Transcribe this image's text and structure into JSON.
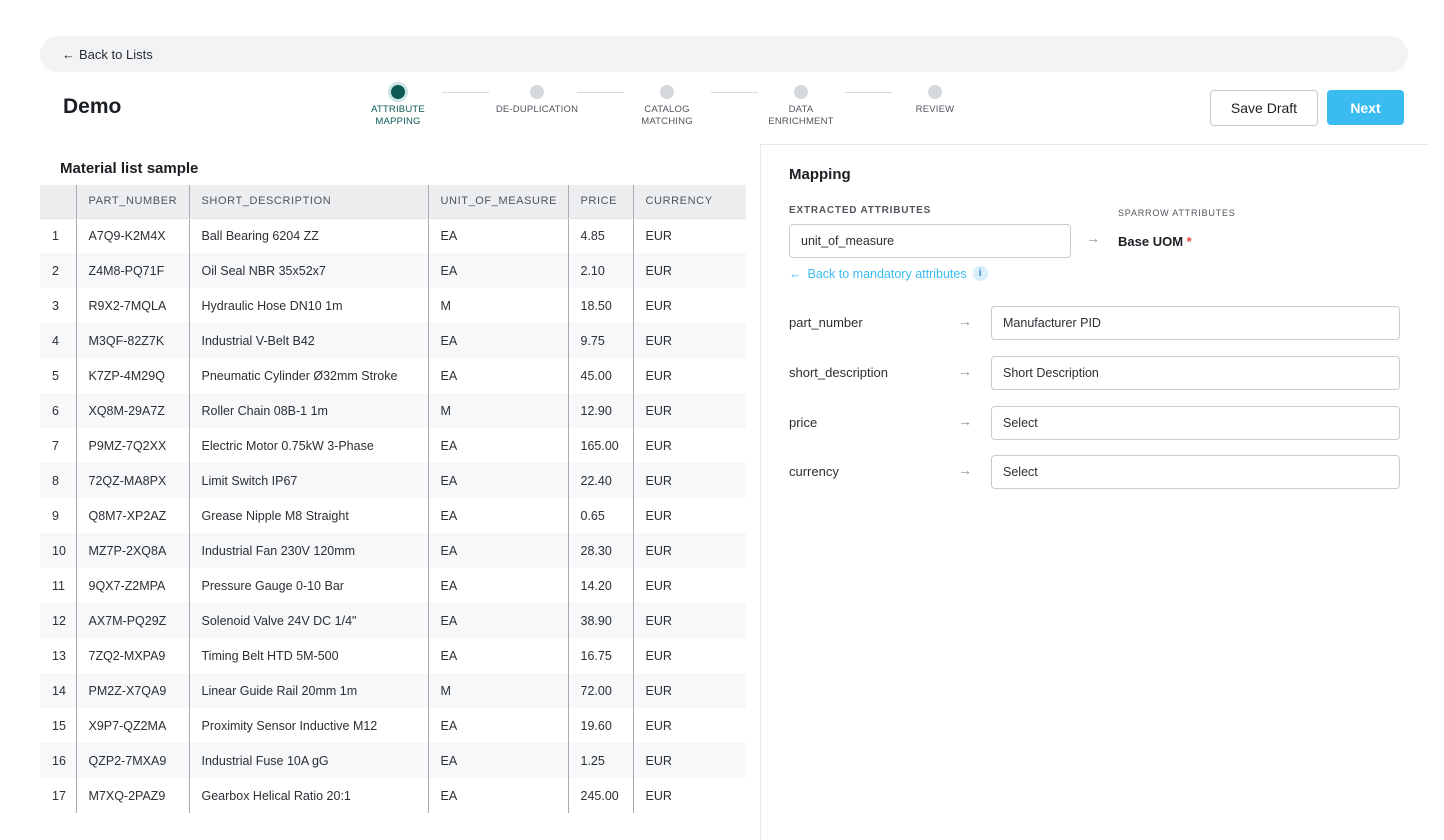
{
  "nav": {
    "back_label": "Back to Lists",
    "back_icon": "arrow-left-icon"
  },
  "page": {
    "title": "Demo"
  },
  "stepper": {
    "steps": [
      {
        "line1": "ATTRIBUTE",
        "line2": "MAPPING",
        "active": true
      },
      {
        "line1": "DE-DUPLICATION",
        "line2": "",
        "active": false
      },
      {
        "line1": "CATALOG",
        "line2": "MATCHING",
        "active": false
      },
      {
        "line1": "DATA",
        "line2": "ENRICHMENT",
        "active": false
      },
      {
        "line1": "REVIEW",
        "line2": "",
        "active": false
      }
    ]
  },
  "actions": {
    "save_draft": "Save Draft",
    "next": "Next"
  },
  "table": {
    "title": "Material list sample",
    "columns": [
      "",
      "PART_NUMBER",
      "SHORT_DESCRIPTION",
      "UNIT_OF_MEASURE",
      "PRICE",
      "CURRENCY"
    ],
    "rows": [
      [
        "1",
        "A7Q9-K2M4X",
        "Ball Bearing 6204 ZZ",
        "EA",
        "4.85",
        "EUR"
      ],
      [
        "2",
        "Z4M8-PQ71F",
        "Oil Seal NBR 35x52x7",
        "EA",
        "2.10",
        "EUR"
      ],
      [
        "3",
        "R9X2-7MQLA",
        "Hydraulic Hose DN10 1m",
        "M",
        "18.50",
        "EUR"
      ],
      [
        "4",
        "M3QF-82Z7K",
        "Industrial V-Belt B42",
        "EA",
        "9.75",
        "EUR"
      ],
      [
        "5",
        "K7ZP-4M29Q",
        "Pneumatic Cylinder Ø32mm Stroke",
        "EA",
        "45.00",
        "EUR"
      ],
      [
        "6",
        "XQ8M-29A7Z",
        "Roller Chain 08B-1 1m",
        "M",
        "12.90",
        "EUR"
      ],
      [
        "7",
        "P9MZ-7Q2XX",
        "Electric Motor 0.75kW 3-Phase",
        "EA",
        "165.00",
        "EUR"
      ],
      [
        "8",
        "72QZ-MA8PX",
        "Limit Switch IP67",
        "EA",
        "22.40",
        "EUR"
      ],
      [
        "9",
        "Q8M7-XP2AZ",
        "Grease Nipple M8 Straight",
        "EA",
        "0.65",
        "EUR"
      ],
      [
        "10",
        "MZ7P-2XQ8A",
        "Industrial Fan 230V 120mm",
        "EA",
        "28.30",
        "EUR"
      ],
      [
        "11",
        "9QX7-Z2MPA",
        "Pressure Gauge 0-10 Bar",
        "EA",
        "14.20",
        "EUR"
      ],
      [
        "12",
        "AX7M-PQ29Z",
        "Solenoid Valve 24V DC 1/4\"",
        "EA",
        "38.90",
        "EUR"
      ],
      [
        "13",
        "7ZQ2-MXPA9",
        "Timing Belt HTD 5M-500",
        "EA",
        "16.75",
        "EUR"
      ],
      [
        "14",
        "PM2Z-X7QA9",
        "Linear Guide Rail 20mm 1m",
        "M",
        "72.00",
        "EUR"
      ],
      [
        "15",
        "X9P7-QZ2MA",
        "Proximity Sensor Inductive M12",
        "EA",
        "19.60",
        "EUR"
      ],
      [
        "16",
        "QZP2-7MXA9",
        "Industrial Fuse 10A gG",
        "EA",
        "1.25",
        "EUR"
      ],
      [
        "17",
        "M7XQ-2PAZ9",
        "Gearbox Helical Ratio 20:1",
        "EA",
        "245.00",
        "EUR"
      ]
    ]
  },
  "mapping": {
    "title": "Mapping",
    "extracted_label": "EXTRACTED ATTRIBUTES",
    "sparrow_label": "SPARROW ATTRIBUTES",
    "extracted_value": "unit_of_measure",
    "sparrow_value": "Base UOM",
    "required_mark": "*",
    "back_mandatory": "Back to mandatory attributes",
    "info_icon": "info-icon",
    "rows": [
      {
        "source": "part_number",
        "target": "Manufacturer PID"
      },
      {
        "source": "short_description",
        "target": "Short Description"
      },
      {
        "source": "price",
        "target": "Select"
      },
      {
        "source": "currency",
        "target": "Select"
      }
    ]
  },
  "colors": {
    "accent": "#3bbcf0",
    "active_step": "#0e5a55",
    "required": "#e8413f"
  }
}
